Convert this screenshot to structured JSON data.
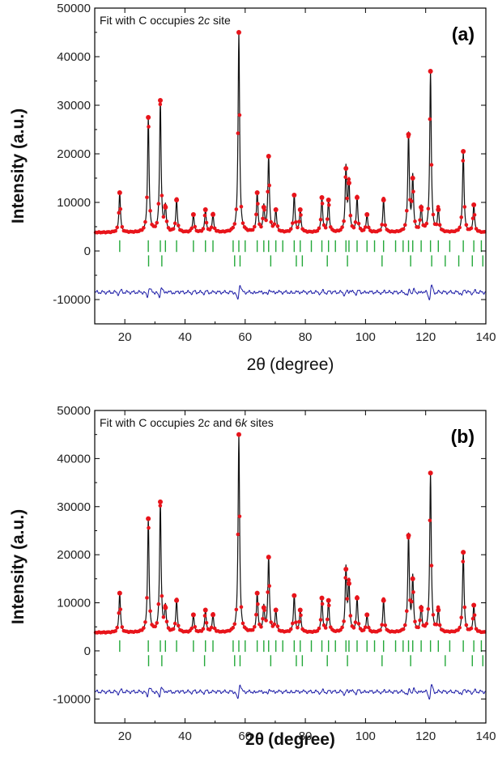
{
  "chart_data": [
    {
      "panel": "a",
      "type": "scatter",
      "panel_label": "(a)",
      "annotation_prefix": "Fit with C occupies 2",
      "annotation_italic_1": "c",
      "annotation_mid": " site",
      "annotation_italic_2": "",
      "annotation_suffix": "",
      "xlabel_main": "2θ",
      "xlabel_unit": "(degree)",
      "xlabel_bold": false,
      "ylabel": "Intensity (a.u.)",
      "xlim": [
        10,
        140
      ],
      "ylim": [
        -15000,
        50000
      ],
      "x_ticks": [
        20,
        40,
        60,
        80,
        100,
        120,
        140
      ],
      "y_ticks": [
        -10000,
        0,
        10000,
        20000,
        30000,
        40000,
        50000
      ],
      "background": 3800,
      "peaks": [
        {
          "x": 18.3,
          "y": 12000
        },
        {
          "x": 27.8,
          "y": 27500
        },
        {
          "x": 31.8,
          "y": 31000
        },
        {
          "x": 33.5,
          "y": 9000
        },
        {
          "x": 37.2,
          "y": 10500
        },
        {
          "x": 42.8,
          "y": 7500
        },
        {
          "x": 46.8,
          "y": 8500
        },
        {
          "x": 49.3,
          "y": 7500
        },
        {
          "x": 57.9,
          "y": 45000
        },
        {
          "x": 64.0,
          "y": 12000
        },
        {
          "x": 66.2,
          "y": 9000
        },
        {
          "x": 67.8,
          "y": 19500
        },
        {
          "x": 70.2,
          "y": 8500
        },
        {
          "x": 76.3,
          "y": 11500
        },
        {
          "x": 78.3,
          "y": 8500
        },
        {
          "x": 85.5,
          "y": 11000
        },
        {
          "x": 87.7,
          "y": 10500
        },
        {
          "x": 93.5,
          "y": 17000
        },
        {
          "x": 94.5,
          "y": 14000
        },
        {
          "x": 97.2,
          "y": 11000
        },
        {
          "x": 100.5,
          "y": 7500
        },
        {
          "x": 106.0,
          "y": 10500
        },
        {
          "x": 114.3,
          "y": 24000
        },
        {
          "x": 115.7,
          "y": 15000
        },
        {
          "x": 118.5,
          "y": 9000
        },
        {
          "x": 121.6,
          "y": 37000
        },
        {
          "x": 124.2,
          "y": 8500
        },
        {
          "x": 132.5,
          "y": 20500
        },
        {
          "x": 136.0,
          "y": 9500
        }
      ],
      "diff_baseline": -8500,
      "tick_row_1": [
        18.3,
        27.8,
        31.8,
        33.5,
        37.2,
        42.8,
        46.8,
        49.3,
        56.0,
        57.9,
        60.0,
        64.0,
        66.2,
        67.8,
        70.2,
        72.5,
        76.3,
        78.3,
        82.0,
        85.5,
        87.7,
        90.0,
        93.5,
        94.5,
        97.2,
        100.5,
        103.0,
        106.0,
        110.0,
        112.5,
        114.3,
        115.7,
        118.5,
        121.6,
        124.2,
        128.0,
        132.5,
        136.0,
        138.5
      ],
      "tick_row_2": [
        27.9,
        32.3,
        56.5,
        58.3,
        68.5,
        77.0,
        79.0,
        87.3,
        94.0,
        105.5,
        115.0,
        122.0,
        126.5,
        131.0,
        135.5,
        139.0
      ],
      "colors": {
        "observed": "#e8141b",
        "calculated": "#111111",
        "difference": "#1a1aa6",
        "bragg": "#24a83a"
      }
    },
    {
      "panel": "b",
      "type": "scatter",
      "panel_label": "(b)",
      "annotation_prefix": "Fit with C occupies 2",
      "annotation_italic_1": "c",
      "annotation_mid": " and 6",
      "annotation_italic_2": "k",
      "annotation_suffix": " sites",
      "xlabel_main": "2θ",
      "xlabel_unit": "(degree)",
      "xlabel_bold": true,
      "ylabel": "Intensity (a.u.)",
      "xlim": [
        10,
        140
      ],
      "ylim": [
        -15000,
        50000
      ],
      "x_ticks": [
        20,
        40,
        60,
        80,
        100,
        120,
        140
      ],
      "y_ticks": [
        -10000,
        0,
        10000,
        20000,
        30000,
        40000,
        50000
      ],
      "background": 3800,
      "peaks": [
        {
          "x": 18.3,
          "y": 12000
        },
        {
          "x": 27.8,
          "y": 27500
        },
        {
          "x": 31.8,
          "y": 31000
        },
        {
          "x": 33.5,
          "y": 9000
        },
        {
          "x": 37.2,
          "y": 10500
        },
        {
          "x": 42.8,
          "y": 7500
        },
        {
          "x": 46.8,
          "y": 8500
        },
        {
          "x": 49.3,
          "y": 7500
        },
        {
          "x": 57.9,
          "y": 45000
        },
        {
          "x": 64.0,
          "y": 12000
        },
        {
          "x": 66.2,
          "y": 9000
        },
        {
          "x": 67.8,
          "y": 19500
        },
        {
          "x": 70.2,
          "y": 8500
        },
        {
          "x": 76.3,
          "y": 11500
        },
        {
          "x": 78.3,
          "y": 8500
        },
        {
          "x": 85.5,
          "y": 11000
        },
        {
          "x": 87.7,
          "y": 10500
        },
        {
          "x": 93.5,
          "y": 17000
        },
        {
          "x": 94.5,
          "y": 14000
        },
        {
          "x": 97.2,
          "y": 11000
        },
        {
          "x": 100.5,
          "y": 7500
        },
        {
          "x": 106.0,
          "y": 10500
        },
        {
          "x": 114.3,
          "y": 24000
        },
        {
          "x": 115.7,
          "y": 15000
        },
        {
          "x": 118.5,
          "y": 9000
        },
        {
          "x": 121.6,
          "y": 37000
        },
        {
          "x": 124.2,
          "y": 8500
        },
        {
          "x": 132.5,
          "y": 20500
        },
        {
          "x": 136.0,
          "y": 9500
        }
      ],
      "diff_baseline": -8500,
      "tick_row_1": [
        18.3,
        27.8,
        31.8,
        33.5,
        37.2,
        42.8,
        46.8,
        49.3,
        56.0,
        57.9,
        60.0,
        64.0,
        66.2,
        67.8,
        70.2,
        72.5,
        76.3,
        78.3,
        82.0,
        85.5,
        87.7,
        90.0,
        93.5,
        94.5,
        97.2,
        100.5,
        103.0,
        106.0,
        110.0,
        112.5,
        114.3,
        115.7,
        118.5,
        121.6,
        124.2,
        128.0,
        132.5,
        136.0,
        138.5
      ],
      "tick_row_2": [
        27.9,
        32.3,
        46.5,
        56.5,
        58.3,
        68.5,
        77.0,
        79.0,
        87.3,
        94.0,
        105.5,
        115.0,
        126.5,
        135.5,
        139.0
      ],
      "colors": {
        "observed": "#e8141b",
        "calculated": "#111111",
        "difference": "#1a1aa6",
        "bragg": "#24a83a"
      }
    }
  ]
}
